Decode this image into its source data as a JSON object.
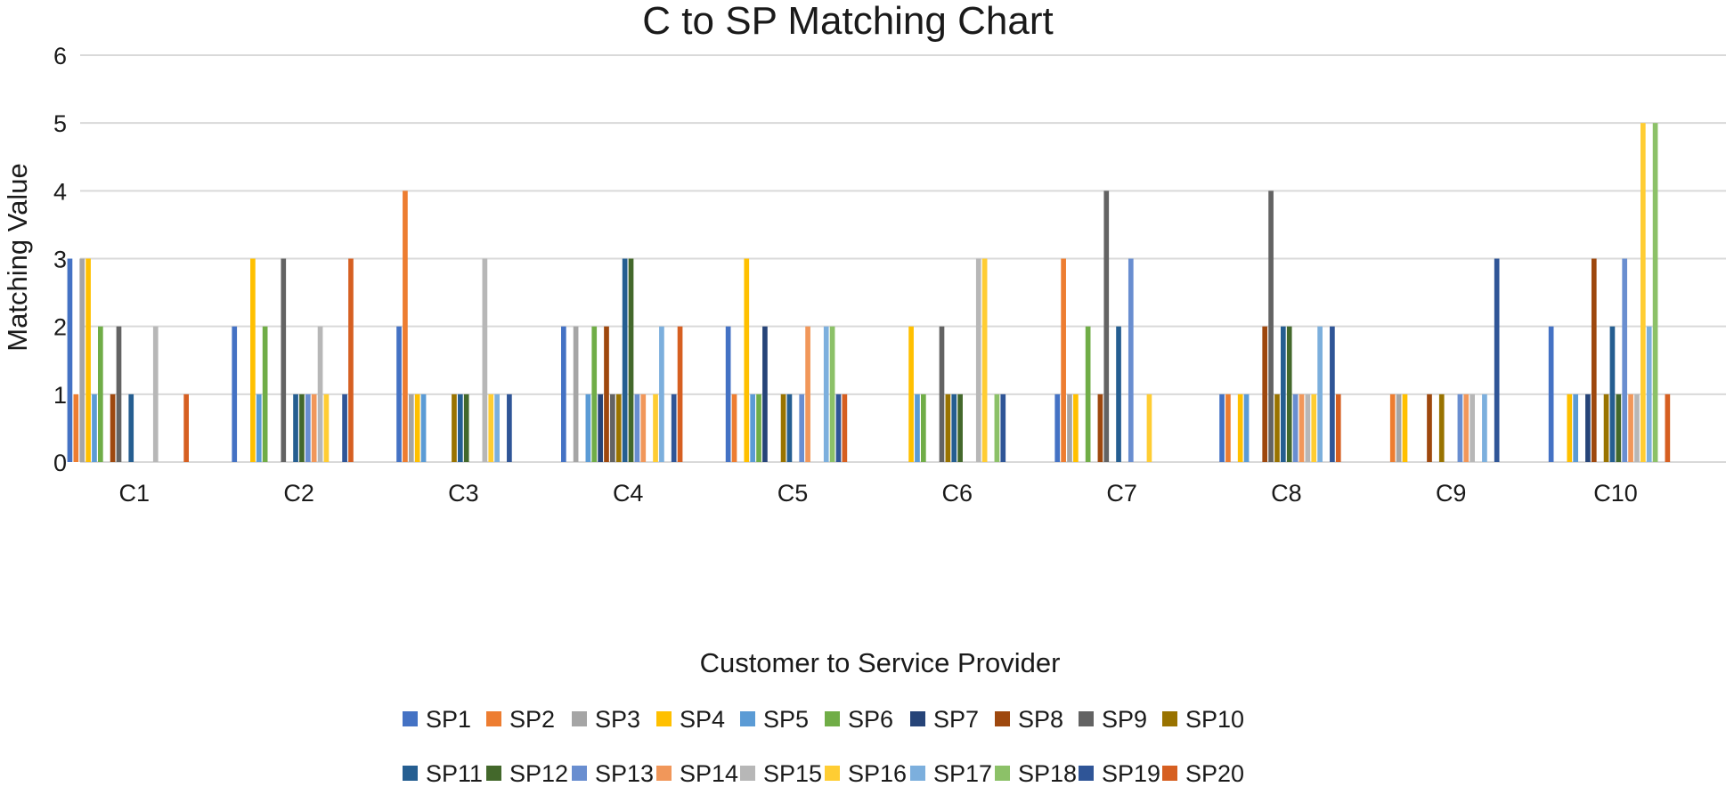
{
  "chart_data": {
    "type": "bar",
    "title": "C to SP Matching Chart",
    "xlabel": "Customer to Service Provider",
    "ylabel": "Matching Value",
    "ylim": [
      0,
      6
    ],
    "yticks": [
      0,
      1,
      2,
      3,
      4,
      5,
      6
    ],
    "grid": true,
    "legend_position": "bottom",
    "categories": [
      "C1",
      "C2",
      "C3",
      "C4",
      "C5",
      "C6",
      "C7",
      "C8",
      "C9",
      "C10"
    ],
    "series": [
      {
        "name": "SP1",
        "color": "#4472C4",
        "values": [
          3,
          2,
          2,
          2,
          2,
          0,
          1,
          1,
          0,
          2
        ]
      },
      {
        "name": "SP2",
        "color": "#ED7D31",
        "values": [
          1,
          0,
          4,
          0,
          1,
          0,
          3,
          1,
          1,
          0
        ]
      },
      {
        "name": "SP3",
        "color": "#A5A5A5",
        "values": [
          3,
          0,
          1,
          2,
          0,
          0,
          1,
          0,
          1,
          0
        ]
      },
      {
        "name": "SP4",
        "color": "#FFC000",
        "values": [
          3,
          3,
          1,
          0,
          3,
          2,
          1,
          1,
          1,
          1
        ]
      },
      {
        "name": "SP5",
        "color": "#5B9BD5",
        "values": [
          1,
          1,
          1,
          1,
          1,
          1,
          0,
          1,
          0,
          1
        ]
      },
      {
        "name": "SP6",
        "color": "#70AD47",
        "values": [
          2,
          2,
          0,
          2,
          1,
          1,
          2,
          0,
          0,
          0
        ]
      },
      {
        "name": "SP7",
        "color": "#264478",
        "values": [
          0,
          0,
          0,
          1,
          2,
          0,
          0,
          0,
          0,
          1
        ]
      },
      {
        "name": "SP8",
        "color": "#9E480E",
        "values": [
          1,
          0,
          0,
          2,
          0,
          0,
          1,
          2,
          1,
          3
        ]
      },
      {
        "name": "SP9",
        "color": "#636363",
        "values": [
          2,
          3,
          0,
          1,
          0,
          2,
          4,
          4,
          0,
          0
        ]
      },
      {
        "name": "SP10",
        "color": "#997300",
        "values": [
          0,
          0,
          1,
          1,
          1,
          1,
          0,
          1,
          1,
          1
        ]
      },
      {
        "name": "SP11",
        "color": "#255E91",
        "values": [
          1,
          1,
          1,
          3,
          1,
          1,
          2,
          2,
          0,
          2
        ]
      },
      {
        "name": "SP12",
        "color": "#43682B",
        "values": [
          0,
          1,
          1,
          3,
          0,
          1,
          0,
          2,
          0,
          1
        ]
      },
      {
        "name": "SP13",
        "color": "#698ED0",
        "values": [
          0,
          1,
          0,
          1,
          1,
          0,
          3,
          1,
          1,
          3
        ]
      },
      {
        "name": "SP14",
        "color": "#F1975A",
        "values": [
          0,
          1,
          0,
          1,
          2,
          0,
          0,
          1,
          1,
          1
        ]
      },
      {
        "name": "SP15",
        "color": "#B7B7B7",
        "values": [
          2,
          2,
          3,
          0,
          0,
          3,
          0,
          1,
          1,
          1
        ]
      },
      {
        "name": "SP16",
        "color": "#FFCD33",
        "values": [
          0,
          1,
          1,
          1,
          0,
          3,
          1,
          1,
          0,
          5
        ]
      },
      {
        "name": "SP17",
        "color": "#7CAFDD",
        "values": [
          0,
          0,
          1,
          2,
          2,
          0,
          0,
          2,
          1,
          2
        ]
      },
      {
        "name": "SP18",
        "color": "#8CC168",
        "values": [
          0,
          0,
          0,
          0,
          2,
          1,
          0,
          0,
          0,
          5
        ]
      },
      {
        "name": "SP19",
        "color": "#2F5597",
        "values": [
          0,
          1,
          1,
          1,
          1,
          1,
          0,
          2,
          3,
          0
        ]
      },
      {
        "name": "SP20",
        "color": "#D65F21",
        "values": [
          1,
          3,
          0,
          2,
          1,
          0,
          0,
          1,
          0,
          1
        ]
      }
    ]
  }
}
